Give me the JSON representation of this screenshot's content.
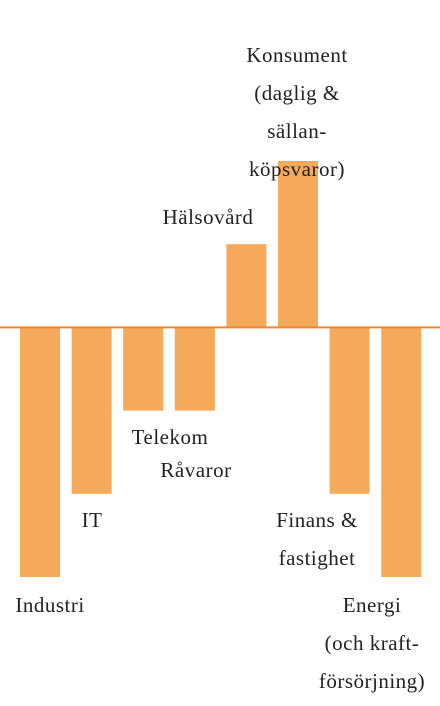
{
  "chart_data": {
    "type": "bar",
    "categories": [
      "Industri",
      "IT",
      "Telekom",
      "Råvaror",
      "Hälsovård",
      "Konsument\n(daglig & sällan-\nköpsvaror)",
      "Finans &\nfastighet",
      "Energi\n(och kraft-\nförsörjning)"
    ],
    "values": [
      -3,
      -2,
      -1,
      -1,
      1,
      2,
      -2,
      -3
    ],
    "color": "#f5a95a",
    "baseline_color": "#f08a2c",
    "ylim": [
      -3,
      2
    ]
  }
}
